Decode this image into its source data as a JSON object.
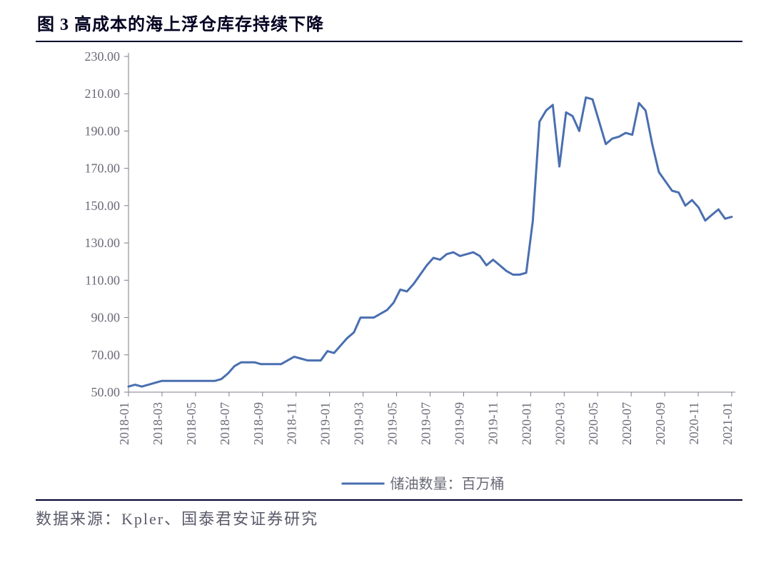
{
  "title": "图 3 高成本的海上浮仓库存持续下降",
  "source": "数据来源：Kpler、国泰君安证券研究",
  "chart": {
    "type": "line",
    "series_name": "储油数量：百万桶",
    "line_color": "#4a6fb0",
    "line_width": 3,
    "axis_color": "#7d7d8c",
    "tick_font_size": 18,
    "tick_font_color": "#6a6a78",
    "legend_font_size": 20,
    "legend_font_color": "#6a6a78",
    "background_color": "#ffffff",
    "ylim": [
      50,
      230
    ],
    "ytick_step": 20,
    "y_tick_labels": [
      "50.00",
      "70.00",
      "90.00",
      "110.00",
      "130.00",
      "150.00",
      "170.00",
      "190.00",
      "210.00",
      "230.00"
    ],
    "x_labels": [
      "2018-01",
      "2018-03",
      "2018-05",
      "2018-07",
      "2018-09",
      "2018-11",
      "2019-01",
      "2019-03",
      "2019-05",
      "2019-07",
      "2019-09",
      "2019-11",
      "2020-01",
      "2020-03",
      "2020-05",
      "2020-07",
      "2020-09",
      "2020-11",
      "2021-01"
    ],
    "values": [
      53,
      54,
      53,
      54,
      55,
      56,
      56,
      56,
      56,
      56,
      56,
      56,
      56,
      56,
      57,
      60,
      64,
      66,
      66,
      66,
      65,
      65,
      65,
      65,
      67,
      69,
      68,
      67,
      67,
      67,
      72,
      71,
      75,
      79,
      82,
      90,
      90,
      90,
      92,
      94,
      98,
      105,
      104,
      108,
      113,
      118,
      122,
      121,
      124,
      125,
      123,
      124,
      125,
      123,
      118,
      121,
      118,
      115,
      113,
      113,
      114,
      142,
      195,
      201,
      204,
      171,
      200,
      198,
      190,
      208,
      207,
      195,
      183,
      186,
      187,
      189,
      188,
      205,
      201,
      183,
      168,
      163,
      158,
      157,
      150,
      153,
      149,
      142,
      145,
      148,
      143,
      144
    ]
  }
}
